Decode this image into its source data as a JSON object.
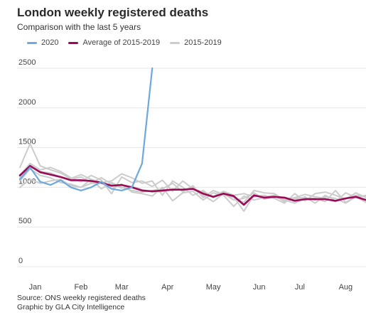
{
  "chart_data": {
    "type": "line",
    "title": "London weekly registered deaths",
    "subtitle": "Comparison with the last 5 years",
    "xlabel": "",
    "ylabel": "",
    "ylim": [
      0,
      2500
    ],
    "yticks": [
      0,
      500,
      1000,
      1500,
      2000,
      2500
    ],
    "xlim": [
      1,
      35
    ],
    "xtick_labels": [
      {
        "label": "Jan",
        "week": 2.5
      },
      {
        "label": "Feb",
        "week": 7
      },
      {
        "label": "Mar",
        "week": 11
      },
      {
        "label": "Apr",
        "week": 15.5
      },
      {
        "label": "May",
        "week": 20
      },
      {
        "label": "Jun",
        "week": 24.5
      },
      {
        "label": "Jul",
        "week": 28.5
      },
      {
        "label": "Aug",
        "week": 33
      }
    ],
    "grid": true,
    "legend_position": "top-left",
    "series": [
      {
        "name": "2015-2019",
        "role": "background",
        "color": "#cccccc",
        "x": [
          1,
          2,
          3,
          4,
          5,
          6,
          7,
          8,
          9,
          10,
          11,
          12,
          13,
          14,
          15,
          16,
          17,
          18,
          19,
          20,
          21,
          22,
          23,
          24,
          25,
          26,
          27,
          28,
          29,
          30,
          31,
          32,
          33,
          34,
          35
        ],
        "values": [
          1250,
          1550,
          1270,
          1220,
          1180,
          1110,
          1160,
          1100,
          980,
          1060,
          1000,
          960,
          940,
          960,
          980,
          1050,
          940,
          1020,
          870,
          960,
          910,
          870,
          810,
          960,
          930,
          920,
          840,
          870,
          910,
          880,
          860,
          820,
          930,
          870,
          900
        ]
      },
      {
        "name": "2015-2019",
        "role": "background",
        "color": "#cccccc",
        "x": [
          1,
          2,
          3,
          4,
          5,
          6,
          7,
          8,
          9,
          10,
          11,
          12,
          13,
          14,
          15,
          16,
          17,
          18,
          19,
          20,
          21,
          22,
          23,
          24,
          25,
          26,
          27,
          28,
          29,
          30,
          31,
          32,
          33,
          34,
          35
        ],
        "values": [
          1150,
          1300,
          1220,
          1250,
          1200,
          1120,
          1070,
          1150,
          1090,
          920,
          1130,
          1060,
          1080,
          1010,
          1090,
          950,
          1080,
          980,
          940,
          880,
          950,
          900,
          920,
          880,
          900,
          860,
          800,
          920,
          830,
          920,
          940,
          900,
          850,
          930,
          870
        ]
      },
      {
        "name": "2015-2019",
        "role": "background",
        "color": "#cccccc",
        "x": [
          1,
          2,
          3,
          4,
          5,
          6,
          7,
          8,
          9,
          10,
          11,
          12,
          13,
          14,
          15,
          16,
          17,
          18,
          19,
          20,
          21,
          22,
          23,
          24,
          25,
          26,
          27,
          28,
          29,
          30,
          31,
          32,
          33,
          34,
          35
        ],
        "values": [
          1080,
          1230,
          1150,
          1120,
          1060,
          1040,
          1000,
          1050,
          1050,
          980,
          1040,
          940,
          920,
          890,
          1000,
          830,
          930,
          950,
          840,
          930,
          900,
          760,
          890,
          840,
          870,
          900,
          840,
          800,
          860,
          860,
          820,
          960,
          810,
          880,
          840
        ]
      },
      {
        "name": "2015-2019",
        "role": "background",
        "color": "#cccccc",
        "x": [
          1,
          2,
          3,
          4,
          5,
          6,
          7,
          8,
          9,
          10,
          11,
          12,
          13,
          14,
          15,
          16,
          17,
          18,
          19,
          20,
          21,
          22,
          23,
          24,
          25,
          26,
          27,
          28,
          29,
          30,
          31,
          32,
          33,
          34,
          35
        ],
        "values": [
          1000,
          1100,
          1050,
          1080,
          1100,
          1020,
          1000,
          1100,
          1060,
          1080,
          1170,
          1120,
          1050,
          1080,
          900,
          1080,
          1000,
          900,
          960,
          870,
          930,
          880,
          700,
          900,
          880,
          900,
          820,
          860,
          870,
          840,
          880,
          860,
          800,
          880,
          810
        ]
      },
      {
        "name": "2015-2019",
        "role": "background",
        "color": "#cccccc",
        "x": [
          1,
          2,
          3,
          4,
          5,
          6,
          7,
          8,
          9,
          10,
          11,
          12,
          13,
          14,
          15,
          16,
          17,
          18,
          19,
          20,
          21,
          22,
          23,
          24,
          25,
          26,
          27,
          28,
          29,
          30,
          31,
          32,
          33,
          34,
          35
        ],
        "values": [
          1120,
          1280,
          1200,
          1180,
          1130,
          1100,
          1130,
          1060,
          1120,
          1040,
          990,
          1010,
          970,
          940,
          950,
          980,
          960,
          1000,
          900,
          820,
          920,
          840,
          860,
          930,
          850,
          880,
          860,
          840,
          880,
          800,
          900,
          830,
          860,
          900,
          880
        ]
      },
      {
        "name": "Average of 2015-2019",
        "role": "average",
        "color": "#9b0a55",
        "x": [
          1,
          2,
          3,
          4,
          5,
          6,
          7,
          8,
          9,
          10,
          11,
          12,
          13,
          14,
          15,
          16,
          17,
          18,
          19,
          20,
          21,
          22,
          23,
          24,
          25,
          26,
          27,
          28,
          29,
          30,
          31,
          32,
          33,
          34,
          35
        ],
        "values": [
          1150,
          1270,
          1190,
          1160,
          1130,
          1090,
          1090,
          1080,
          1060,
          1020,
          1030,
          1000,
          960,
          950,
          960,
          970,
          970,
          980,
          920,
          880,
          920,
          890,
          780,
          900,
          870,
          880,
          870,
          830,
          850,
          850,
          850,
          830,
          860,
          880,
          840
        ]
      },
      {
        "name": "2020",
        "role": "highlight",
        "color": "#6fa8dc",
        "x": [
          1,
          2,
          3,
          4,
          5,
          6,
          7,
          8,
          9,
          10,
          11,
          12,
          13,
          14
        ],
        "values": [
          1100,
          1250,
          1070,
          1030,
          1090,
          1000,
          960,
          1000,
          1070,
          980,
          960,
          1000,
          1300,
          2500
        ]
      }
    ],
    "legend": [
      {
        "label": "2020",
        "color": "#6fa8dc"
      },
      {
        "label": "Average of 2015-2019",
        "color": "#9b0a55"
      },
      {
        "label": "2015-2019",
        "color": "#cccccc"
      }
    ]
  },
  "footer": {
    "source": "Source: ONS weekly registered deaths",
    "credit": "Graphic by GLA City Intelligence"
  }
}
